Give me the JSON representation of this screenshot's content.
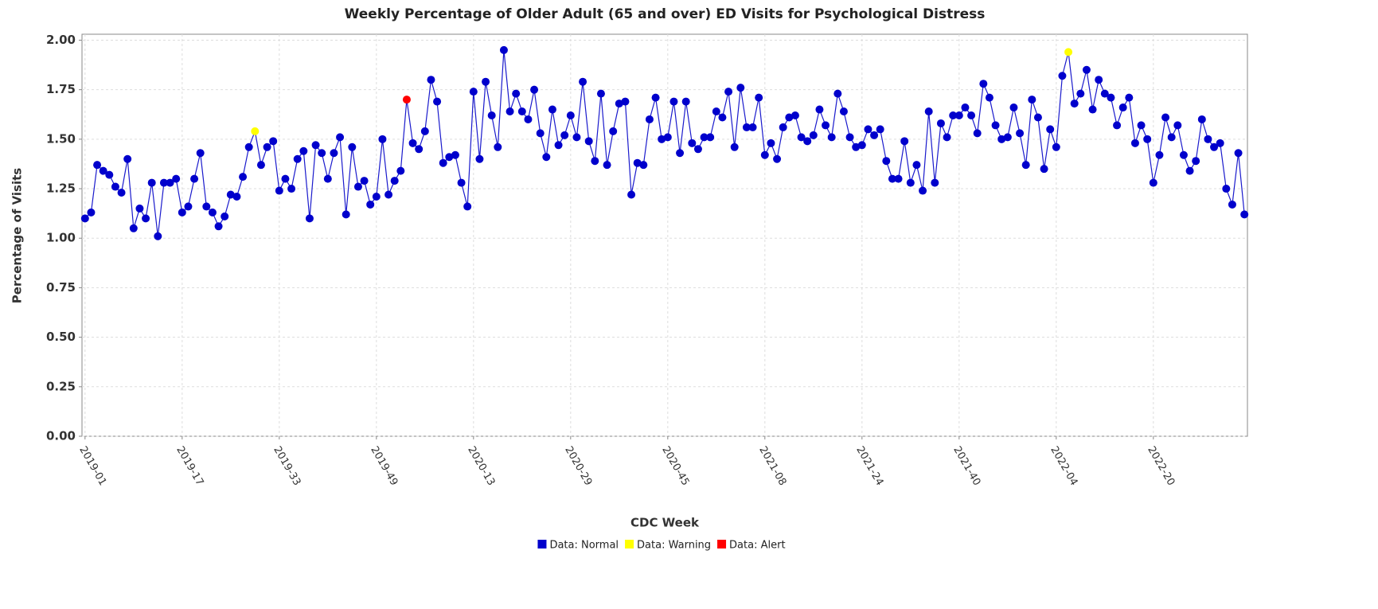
{
  "chart_data": {
    "type": "line",
    "title": "Weekly Percentage of Older Adult (65 and over) ED Visits for Psychological Distress",
    "xlabel": "CDC Week",
    "ylabel": "Percentage of Visits",
    "categories": [
      "2019-01",
      null,
      null,
      null,
      null,
      null,
      null,
      null,
      null,
      null,
      null,
      null,
      null,
      null,
      null,
      null,
      "2019-17",
      null,
      null,
      null,
      null,
      null,
      null,
      null,
      null,
      null,
      null,
      null,
      null,
      null,
      null,
      null,
      "2019-33",
      null,
      null,
      null,
      null,
      null,
      null,
      null,
      null,
      null,
      null,
      null,
      null,
      null,
      null,
      null,
      "2019-49",
      null,
      null,
      null,
      null,
      null,
      null,
      null,
      null,
      null,
      null,
      null,
      null,
      null,
      null,
      null,
      "2020-13",
      null,
      null,
      null,
      null,
      null,
      null,
      null,
      null,
      null,
      null,
      null,
      null,
      null,
      null,
      null,
      "2020-29",
      null,
      null,
      null,
      null,
      null,
      null,
      null,
      null,
      null,
      null,
      null,
      null,
      null,
      null,
      null,
      "2020-45",
      null,
      null,
      null,
      null,
      null,
      null,
      null,
      null,
      null,
      null,
      null,
      null,
      null,
      null,
      null,
      "2021-08",
      null,
      null,
      null,
      null,
      null,
      null,
      null,
      null,
      null,
      null,
      null,
      null,
      null,
      null,
      null,
      "2021-24",
      null,
      null,
      null,
      null,
      null,
      null,
      null,
      null,
      null,
      null,
      null,
      null,
      null,
      null,
      null,
      "2021-40",
      null,
      null,
      null,
      null,
      null,
      null,
      null,
      null,
      null,
      null,
      null,
      null,
      null,
      null,
      null,
      "2022-04",
      null,
      null,
      null,
      null,
      null,
      null,
      null,
      null,
      null,
      null,
      null,
      null,
      null,
      null,
      null,
      "2022-20",
      null,
      null,
      null,
      null,
      null,
      null,
      null,
      null,
      null,
      null,
      null,
      null,
      null,
      null,
      null
    ],
    "series": [
      {
        "color": "#1a1acc",
        "values": [
          1.1,
          1.13,
          1.37,
          1.34,
          1.32,
          1.26,
          1.23,
          1.4,
          1.05,
          1.15,
          1.1,
          1.28,
          1.01,
          1.28,
          1.28,
          1.3,
          1.13,
          1.16,
          1.3,
          1.43,
          1.16,
          1.13,
          1.06,
          1.11,
          1.22,
          1.21,
          1.31,
          1.46,
          1.54,
          1.37,
          1.46,
          1.49,
          1.24,
          1.3,
          1.25,
          1.4,
          1.44,
          1.1,
          1.47,
          1.43,
          1.3,
          1.43,
          1.51,
          1.12,
          1.46,
          1.26,
          1.29,
          1.17,
          1.21,
          1.5,
          1.22,
          1.29,
          1.34,
          1.7,
          1.48,
          1.45,
          1.54,
          1.8,
          1.69,
          1.38,
          1.41,
          1.42,
          1.28,
          1.16,
          1.74,
          1.4,
          1.79,
          1.62,
          1.46,
          1.95,
          1.64,
          1.73,
          1.64,
          1.6,
          1.75,
          1.53,
          1.41,
          1.65,
          1.47,
          1.52,
          1.62,
          1.51,
          1.79,
          1.49,
          1.39,
          1.73,
          1.37,
          1.54,
          1.68,
          1.69,
          1.22,
          1.38,
          1.37,
          1.6,
          1.71,
          1.5,
          1.51,
          1.69,
          1.43,
          1.69,
          1.48,
          1.45,
          1.51,
          1.51,
          1.64,
          1.61,
          1.74,
          1.46,
          1.76,
          1.56,
          1.56,
          1.71,
          1.42,
          1.48,
          1.4,
          1.56,
          1.61,
          1.62,
          1.51,
          1.49,
          1.52,
          1.65,
          1.57,
          1.51,
          1.73,
          1.64,
          1.51,
          1.46,
          1.47,
          1.55,
          1.52,
          1.55,
          1.39,
          1.3,
          1.3,
          1.49,
          1.28,
          1.37,
          1.24,
          1.64,
          1.28,
          1.58,
          1.51,
          1.62,
          1.62,
          1.66,
          1.62,
          1.53,
          1.78,
          1.71,
          1.57,
          1.5,
          1.51,
          1.66,
          1.53,
          1.37,
          1.7,
          1.61,
          1.35,
          1.55,
          1.46,
          1.82,
          1.94,
          1.68,
          1.73,
          1.85,
          1.65,
          1.8,
          1.73,
          1.71,
          1.57,
          1.66,
          1.71,
          1.48,
          1.57,
          1.5,
          1.28,
          1.42,
          1.61,
          1.51,
          1.57,
          1.42,
          1.34,
          1.39,
          1.6,
          1.5,
          1.46,
          1.48,
          1.25,
          1.17,
          1.43,
          1.12
        ]
      }
    ],
    "status_legend": [
      {
        "name": "Data: Normal",
        "color": "#0000cc"
      },
      {
        "name": "Data: Warning",
        "color": "#ffff00",
        "points": [
          28,
          162
        ]
      },
      {
        "name": "Data: Alert",
        "color": "#ff0000",
        "points": [
          53
        ]
      }
    ],
    "ylim": [
      0,
      2.03
    ],
    "yticks": [
      {
        "value": 0,
        "label": "0.00"
      },
      {
        "value": 0.25,
        "label": "0.25"
      },
      {
        "value": 0.5,
        "label": "0.50"
      },
      {
        "value": 0.75,
        "label": "0.75"
      },
      {
        "value": 1,
        "label": "1.00"
      },
      {
        "value": 1.25,
        "label": "1.25"
      },
      {
        "value": 1.5,
        "label": "1.50"
      },
      {
        "value": 1.75,
        "label": "1.75"
      },
      {
        "value": 2,
        "label": "2.00"
      }
    ],
    "grid": true
  }
}
